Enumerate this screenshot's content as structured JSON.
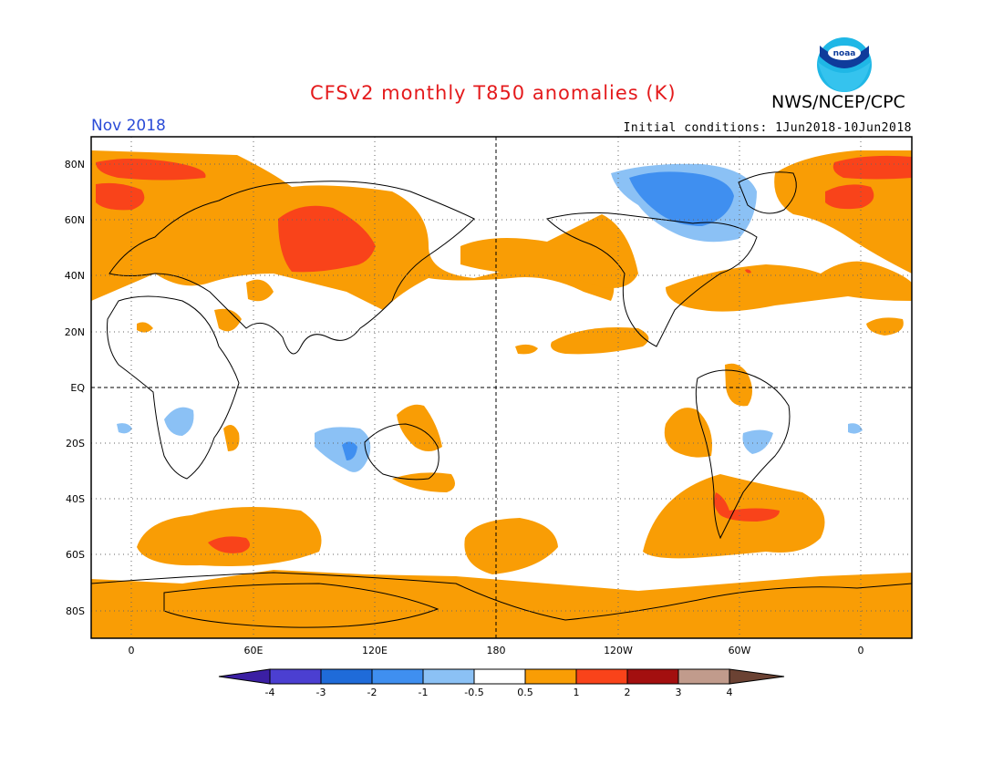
{
  "header": {
    "title": "CFSv2 monthly T850 anomalies (K)",
    "agency": "NWS/NCEP/CPC",
    "valid_month": "Nov 2018",
    "initial_conditions": "Initial conditions: 1Jun2018-10Jun2018",
    "logo_text": "noaa"
  },
  "map": {
    "lat_labels": [
      "80N",
      "60N",
      "40N",
      "20N",
      "EQ",
      "20S",
      "40S",
      "60S",
      "80S"
    ],
    "lon_labels": [
      "0",
      "60E",
      "120E",
      "180",
      "120W",
      "60W",
      "0"
    ]
  },
  "colorbar": {
    "tick_labels": [
      "-4",
      "-3",
      "-2",
      "-1",
      "-0.5",
      "0.5",
      "1",
      "2",
      "3",
      "4"
    ],
    "colors": [
      "#3b1fa3",
      "#4b3fd1",
      "#1f6bd9",
      "#3f8ff0",
      "#8bc1f5",
      "#ffffff",
      "#f99d05",
      "#f9431a",
      "#a30f0f",
      "#c19b8c",
      "#6b4233"
    ]
  },
  "legend_colors": {
    "warm_0_5_1": "#f99d05",
    "warm_1_2": "#f9431a",
    "cool_m1_m0_5": "#8bc1f5",
    "cool_m2_m1": "#3f8ff0"
  }
}
